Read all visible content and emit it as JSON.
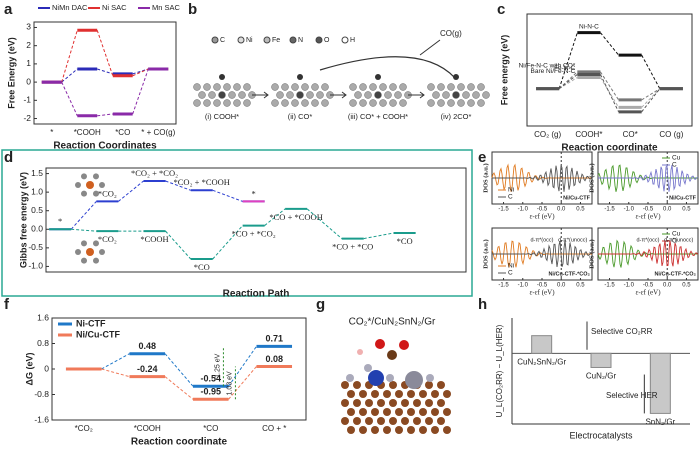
{
  "figure": {
    "panel_labels": [
      "a",
      "b",
      "c",
      "d",
      "e",
      "f",
      "g",
      "h"
    ]
  },
  "chart_data": [
    {
      "type": "energy",
      "ylabel": "Free Energy (eV)",
      "xlabel": "Reaction Coordinates",
      "categories": [
        "*",
        "*COOH",
        "*CO",
        "* + CO(g)"
      ],
      "ylim": [
        -2.3,
        3.3
      ],
      "yticks": [
        -2,
        -1,
        0,
        1,
        2,
        3
      ],
      "legend": "top",
      "series": [
        {
          "name": "NiMn DAC",
          "color": "#2b2bb8",
          "values": [
            0,
            0.72,
            0.45,
            0.72
          ]
        },
        {
          "name": "Ni SAC",
          "color": "#e03030",
          "values": [
            0,
            2.85,
            0.35,
            0.72
          ]
        },
        {
          "name": "Mn SAC",
          "color": "#8a2aa8",
          "values": [
            0,
            -1.85,
            -1.75,
            0.72
          ]
        }
      ]
    },
    {
      "type": "energy",
      "ylabel": "Free energy (eV)",
      "xlabel": "Reaction coordinate",
      "categories": [
        "CO₂ (g)",
        "COOH*",
        "CO*",
        "CO (g)"
      ],
      "ylim": [
        -1,
        2
      ],
      "legend": "inline",
      "series": [
        {
          "name": "Ni-N-C",
          "color": "#111111",
          "values": [
            0,
            1.5,
            0.9,
            0
          ]
        },
        {
          "name": "Ni/Fe-N-C with CO*",
          "color": "#777777",
          "values": [
            0,
            0.45,
            -0.3,
            0
          ]
        },
        {
          "name": "Bare Ni/Fe-N-C",
          "color": "#aaaaaa",
          "values": [
            0,
            0.3,
            -0.5,
            0
          ]
        },
        {
          "name": "Fe-N-C",
          "color": "#555555",
          "values": [
            0,
            0.38,
            -0.62,
            0
          ]
        }
      ]
    },
    {
      "type": "path",
      "ylabel": "Gibbs free energy (eV)",
      "xlabel": "Reaction Path",
      "xlim": [
        -0.3,
        8.6
      ],
      "ylim": [
        -1.15,
        1.65
      ],
      "yticks": [
        {
          "value": -1,
          "label": "-1.0"
        },
        -0.5,
        {
          "value": 0,
          "label": "0.0"
        },
        0.5,
        {
          "value": 1,
          "label": "1.0"
        },
        1.5
      ],
      "series": [
        {
          "name": null,
          "color": "#2c3fd0",
          "x": [
            0,
            1,
            2,
            3,
            4.1
          ],
          "values": [
            0,
            0.75,
            1.3,
            1.05,
            0.75
          ],
          "labels": [
            "*",
            "*CO₂",
            "*CO₂ + *CO₂",
            "*CO₂ + *COOH",
            null
          ]
        },
        {
          "name": null,
          "color": "#e040c0",
          "x": [
            4.1
          ],
          "values": [
            0.75
          ],
          "labels": [
            "*"
          ]
        },
        {
          "name": null,
          "color": "#1a9c8c",
          "x": [
            0,
            1,
            2,
            3,
            4.1,
            5,
            6.2,
            7.3
          ],
          "values": [
            0,
            -0.05,
            -0.05,
            -0.8,
            0.1,
            0.55,
            -0.25,
            -0.1
          ],
          "labels": [
            null,
            "*CO₂",
            "*COOH",
            "*CO",
            "*CO + *CO₂",
            "*CO + *COOH",
            "*CO + *CO",
            "*CO"
          ]
        }
      ]
    },
    {
      "type": "energy",
      "ylabel": "ΔG (eV)",
      "xlabel": "Reaction coordinate",
      "categories": [
        "*CO₂",
        "*COOH",
        "*CO",
        "CO + *"
      ],
      "ylim": [
        -1.6,
        1.6
      ],
      "yticks": [
        1.6,
        0.8,
        0,
        -0.8,
        -1.6
      ],
      "legend": "upper left",
      "series": [
        {
          "name": "Ni-CTF",
          "color": "#1f78c8",
          "values": [
            0,
            0.48,
            -0.54,
            0.71
          ],
          "value_labels": [
            null,
            "0.48",
            "-0.54",
            "0.71"
          ]
        },
        {
          "name": "Ni/Cu-CTF",
          "color": "#f07a5a",
          "values": [
            0,
            -0.24,
            -0.95,
            0.08
          ],
          "value_labels": [
            null,
            "-0.24",
            "-0.95",
            "0.08"
          ]
        }
      ],
      "annotations": [
        "1.25 eV",
        "1.03 eV"
      ]
    },
    {
      "type": "bar",
      "ylabel": "U_L(CO₂RR) − U_L(HER)",
      "xlabel": "Electrocatalysts",
      "categories": [
        "CuN₂SnN₂/Gr",
        "CuN₂/Gr",
        "SnN₂/Gr"
      ],
      "values": [
        0.25,
        -0.2,
        -0.85
      ],
      "ylim": [
        -1,
        0.5
      ],
      "color": "#c8c8c8",
      "annotations": [
        "Selective CO₂RR",
        "Selective HER"
      ]
    }
  ],
  "scheme_b": {
    "legend": [
      "C",
      "Ni",
      "Fe",
      "N",
      "O",
      "H"
    ],
    "steps": [
      "(i) COOH*",
      "(ii) CO*",
      "(iii) CO* + COOH*",
      "(iv) 2CO*"
    ],
    "product": "CO(g)"
  },
  "dos_e": {
    "ylabel": "DOS (a.u.)",
    "xlabel": "ε-εf (eV)",
    "xticks": [
      -1.5,
      {
        "value": -1,
        "label": "-1.0"
      },
      -0.5,
      {
        "value": 0,
        "label": "0.0"
      },
      0.5
    ],
    "plots": [
      {
        "legend": [
          "Ni",
          "C"
        ],
        "caption": "Ni/Cu-CTF"
      },
      {
        "legend": [
          "Cu",
          "C"
        ],
        "caption": "Ni/Cu-CTF"
      },
      {
        "legend": [
          "Ni",
          "C"
        ],
        "caption": "Ni/Cu-CTF-*CO₂",
        "notes": [
          "d-π*(occ)",
          "d-π*(unocc)"
        ]
      },
      {
        "legend": [
          "Cu",
          "O"
        ],
        "caption": "Ni/Cu-CTF-*CO₂",
        "notes": [
          "d-π*(occ)",
          "d-π*(unocc)"
        ]
      }
    ]
  },
  "structure_g": {
    "title": "CO₂*/CuN₂SnN₂/Gr"
  }
}
